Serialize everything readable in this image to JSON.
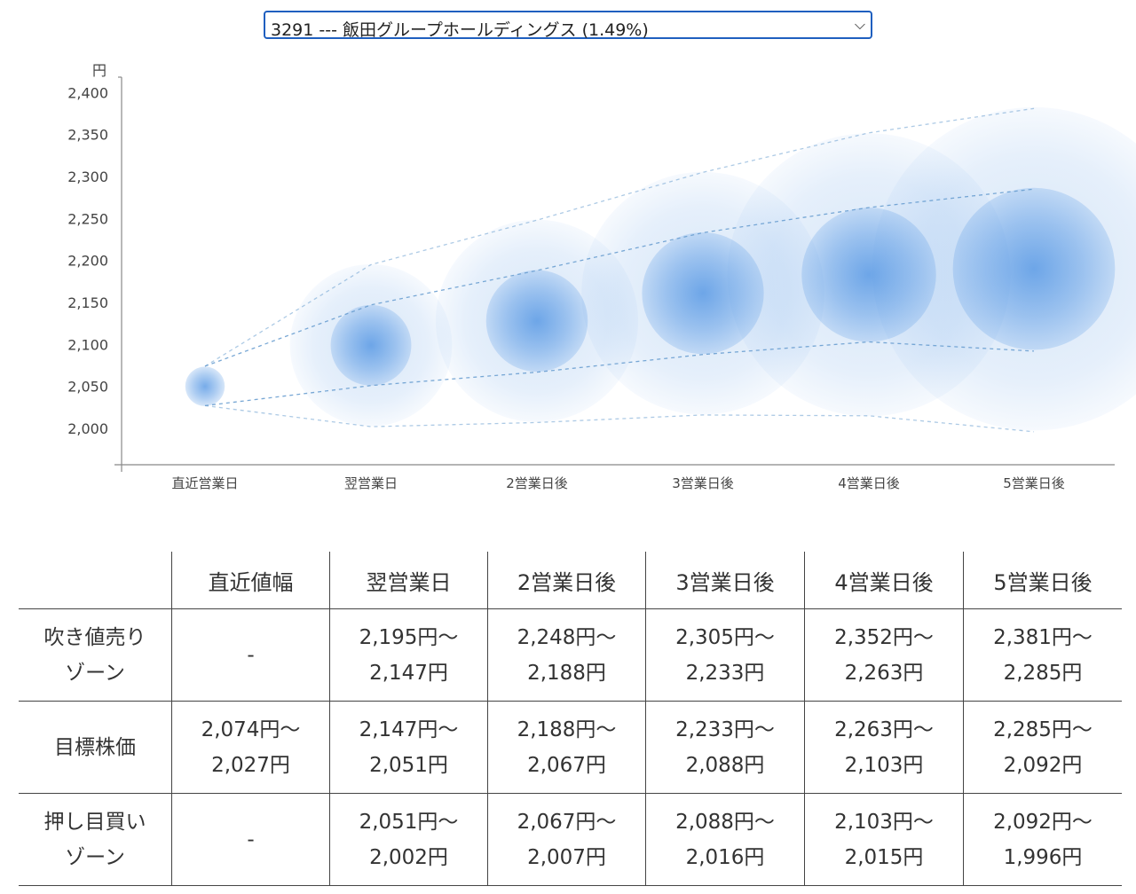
{
  "selector": {
    "value": "3291 --- 飯田グループホールディングス (1.49%)",
    "chevron_icon": "chevron-down-icon"
  },
  "chart_data": {
    "type": "bubble-forecast",
    "title": "",
    "ylabel": "円",
    "ylim": [
      1950,
      2400
    ],
    "yticks": [
      "2,400",
      "2,350",
      "2,300",
      "2,250",
      "2,200",
      "2,150",
      "2,100",
      "2,050",
      "2,000"
    ],
    "ytick_values": [
      2400,
      2350,
      2300,
      2250,
      2200,
      2150,
      2100,
      2050,
      2000
    ],
    "categories": [
      "直近営業日",
      "翌営業日",
      "2営業日後",
      "3営業日後",
      "4営業日後",
      "5営業日後"
    ],
    "center": [
      2050,
      2099,
      2128,
      2161,
      2183,
      2190
    ],
    "target_high": [
      2074,
      2147,
      2188,
      2233,
      2263,
      2285
    ],
    "target_low": [
      2027,
      2051,
      2067,
      2088,
      2103,
      2092
    ],
    "outer_high": [
      2074,
      2195,
      2248,
      2305,
      2352,
      2381
    ],
    "outer_low": [
      2027,
      2002,
      2007,
      2016,
      2015,
      1996
    ],
    "colors": {
      "bubble": "#4a90e2",
      "line": "#6a9fd0",
      "axis": "#888888"
    }
  },
  "table": {
    "headers": [
      "",
      "直近値幅",
      "翌営業日",
      "2営業日後",
      "3営業日後",
      "4営業日後",
      "5営業日後"
    ],
    "rows": [
      {
        "label": [
          "吹き値売り",
          "ゾーン"
        ],
        "cells": [
          [
            "-"
          ],
          [
            "2,195円〜",
            "2,147円"
          ],
          [
            "2,248円〜",
            "2,188円"
          ],
          [
            "2,305円〜",
            "2,233円"
          ],
          [
            "2,352円〜",
            "2,263円"
          ],
          [
            "2,381円〜",
            "2,285円"
          ]
        ]
      },
      {
        "label": [
          "目標株価"
        ],
        "cells": [
          [
            "2,074円〜",
            "2,027円"
          ],
          [
            "2,147円〜",
            "2,051円"
          ],
          [
            "2,188円〜",
            "2,067円"
          ],
          [
            "2,233円〜",
            "2,088円"
          ],
          [
            "2,263円〜",
            "2,103円"
          ],
          [
            "2,285円〜",
            "2,092円"
          ]
        ]
      },
      {
        "label": [
          "押し目買い",
          "ゾーン"
        ],
        "cells": [
          [
            "-"
          ],
          [
            "2,051円〜",
            "2,002円"
          ],
          [
            "2,067円〜",
            "2,007円"
          ],
          [
            "2,088円〜",
            "2,016円"
          ],
          [
            "2,103円〜",
            "2,015円"
          ],
          [
            "2,092円〜",
            "1,996円"
          ]
        ]
      }
    ]
  }
}
